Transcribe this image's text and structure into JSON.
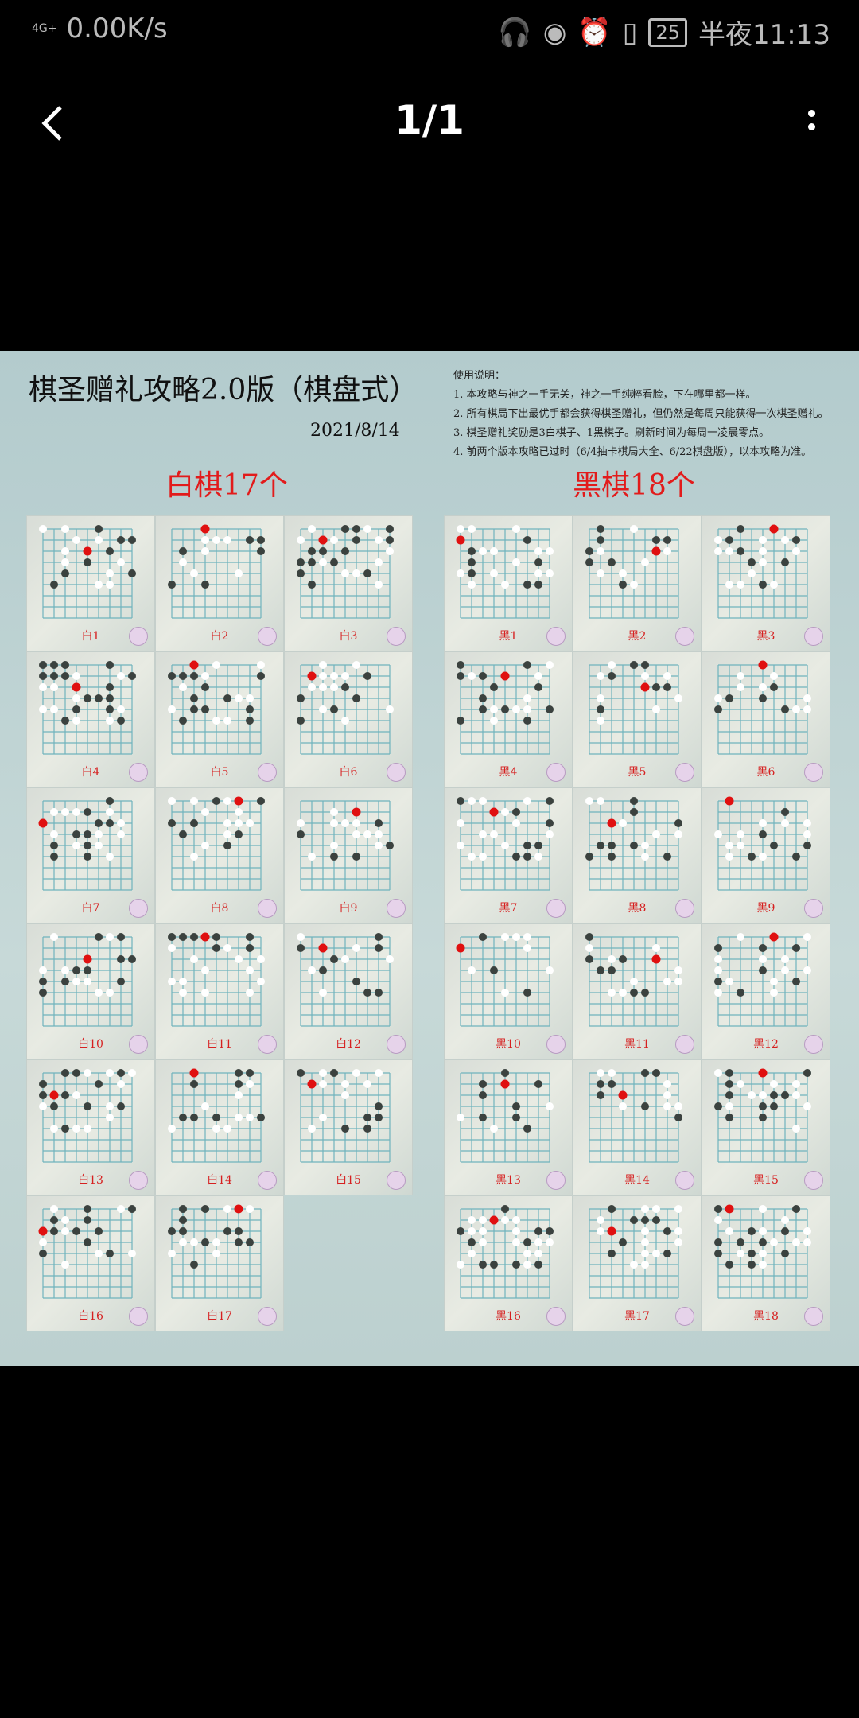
{
  "status": {
    "network": "4G+",
    "speed": "0.00K/s",
    "battery": "25",
    "time": "半夜11:13",
    "icons": [
      "headset-icon",
      "eye-icon",
      "alarm-icon",
      "vibrate-icon"
    ]
  },
  "nav": {
    "title": "1/1",
    "back_icon": "back-arrow-icon",
    "more_icon": "more-vertical-icon"
  },
  "image": {
    "title": "棋圣赠礼攻略2.0版（棋盘式）",
    "date": "2021/8/14",
    "notes": [
      "使用说明：",
      "1. 本攻略与神之一手无关，神之一手纯粹看脸，下在哪里都一样。",
      "2. 所有棋局下出最优手都会获得棋圣赠礼，但仍然是每周只能获得一次棋圣赠礼。",
      "3. 棋圣赠礼奖励是3白棋子、1黑棋子。刷新时间为每周一凌晨零点。",
      "4. 前两个版本攻略已过时（6/4抽卡棋局大全、6/22棋盘版），以本攻略为准。"
    ],
    "white_heading": "白棋17个",
    "black_heading": "黑棋18个",
    "white_labels": [
      "白1",
      "白2",
      "白3",
      "白4",
      "白5",
      "白6",
      "白7",
      "白8",
      "白9",
      "白10",
      "白11",
      "白12",
      "白13",
      "白14",
      "白15",
      "白16",
      "白17"
    ],
    "black_labels": [
      "黑1",
      "黑2",
      "黑3",
      "黑4",
      "黑5",
      "黑6",
      "黑7",
      "黑8",
      "黑9",
      "黑10",
      "黑11",
      "黑12",
      "黑13",
      "黑14",
      "黑15",
      "黑16",
      "黑17",
      "黑18"
    ],
    "colors": {
      "heading": "#e21b1b",
      "highlight_stone": "#e01010",
      "background": "#b9d0d2"
    }
  }
}
